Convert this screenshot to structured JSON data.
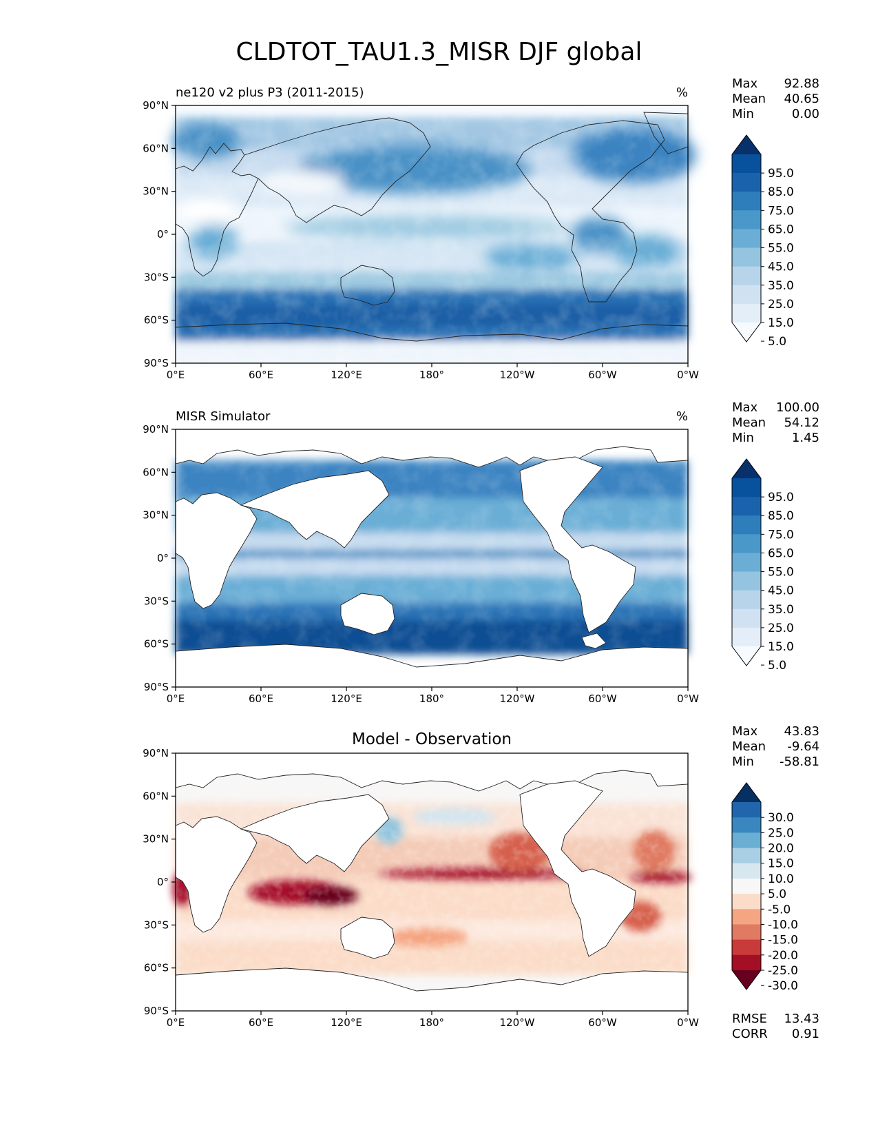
{
  "figure": {
    "title": "CLDTOT_TAU1.3_MISR DJF global"
  },
  "axes": {
    "lat_ticks": [
      "90°N",
      "60°N",
      "30°N",
      "0°",
      "30°S",
      "60°S",
      "90°S"
    ],
    "lon_ticks": [
      "0°E",
      "60°E",
      "120°E",
      "180°",
      "120°W",
      "60°W",
      "0°W"
    ]
  },
  "panels": [
    {
      "id": "test",
      "title_left": "ne120 v2 plus P3 (2011-2015)",
      "title_center": "",
      "units": "%",
      "stats": [
        {
          "label": "Max",
          "value": "92.88"
        },
        {
          "label": "Mean",
          "value": "40.65"
        },
        {
          "label": "Min",
          "value": "0.00"
        }
      ],
      "extra_stats": [],
      "colorbar": {
        "labels": [
          "95.0",
          "85.0",
          "75.0",
          "65.0",
          "55.0",
          "45.0",
          "35.0",
          "25.0",
          "15.0",
          "5.0"
        ],
        "colors": [
          "#08306b",
          "#08519c",
          "#1b62ad",
          "#2e7ebc",
          "#4a98c9",
          "#6aaed6",
          "#94c4df",
          "#b7d4ea",
          "#d0e1f2",
          "#e3eef9",
          "#f7fbff"
        ]
      }
    },
    {
      "id": "ref",
      "title_left": "MISR Simulator",
      "title_center": "",
      "units": "%",
      "stats": [
        {
          "label": "Max",
          "value": "100.00"
        },
        {
          "label": "Mean",
          "value": "54.12"
        },
        {
          "label": "Min",
          "value": "1.45"
        }
      ],
      "extra_stats": [],
      "colorbar": {
        "labels": [
          "95.0",
          "85.0",
          "75.0",
          "65.0",
          "55.0",
          "45.0",
          "35.0",
          "25.0",
          "15.0",
          "5.0"
        ],
        "colors": [
          "#08306b",
          "#08519c",
          "#1b62ad",
          "#2e7ebc",
          "#4a98c9",
          "#6aaed6",
          "#94c4df",
          "#b7d4ea",
          "#d0e1f2",
          "#e3eef9",
          "#f7fbff"
        ]
      }
    },
    {
      "id": "diff",
      "title_left": "",
      "title_center": "Model - Observation",
      "units": "",
      "stats": [
        {
          "label": "Max",
          "value": "43.83"
        },
        {
          "label": "Mean",
          "value": "-9.64"
        },
        {
          "label": "Min",
          "value": "-58.81"
        }
      ],
      "extra_stats": [
        {
          "label": "RMSE",
          "value": "13.43"
        },
        {
          "label": "CORR",
          "value": "0.91"
        }
      ],
      "colorbar": {
        "labels": [
          "30.0",
          "25.0",
          "20.0",
          "15.0",
          "10.0",
          "5.0",
          "-5.0",
          "-10.0",
          "-15.0",
          "-20.0",
          "-25.0",
          "-30.0"
        ],
        "colors": [
          "#053061",
          "#2166ac",
          "#3a87c0",
          "#6aaed4",
          "#a8cfe4",
          "#d6e7f0",
          "#f7f7f7",
          "#fbdcc8",
          "#f4a582",
          "#e07a62",
          "#c93a3a",
          "#a50f25",
          "#67001f"
        ]
      }
    }
  ],
  "chart_data": [
    {
      "type": "heatmap",
      "title": "ne120 v2 plus P3 (2011-2015)",
      "units": "%",
      "xlim": [
        0,
        360
      ],
      "ylim": [
        -90,
        90
      ],
      "stats": {
        "max": 92.88,
        "mean": 40.65,
        "min": 0.0
      },
      "levels": [
        5,
        15,
        25,
        35,
        45,
        55,
        65,
        75,
        85,
        95
      ]
    },
    {
      "type": "heatmap",
      "title": "MISR Simulator",
      "units": "%",
      "xlim": [
        0,
        360
      ],
      "ylim": [
        -90,
        90
      ],
      "stats": {
        "max": 100.0,
        "mean": 54.12,
        "min": 1.45
      },
      "levels": [
        5,
        15,
        25,
        35,
        45,
        55,
        65,
        75,
        85,
        95
      ]
    },
    {
      "type": "heatmap",
      "title": "Model - Observation",
      "xlim": [
        0,
        360
      ],
      "ylim": [
        -90,
        90
      ],
      "stats": {
        "max": 43.83,
        "mean": -9.64,
        "min": -58.81,
        "rmse": 13.43,
        "corr": 0.91
      },
      "levels": [
        -30,
        -25,
        -20,
        -15,
        -10,
        -5,
        5,
        10,
        15,
        20,
        25,
        30
      ]
    }
  ]
}
